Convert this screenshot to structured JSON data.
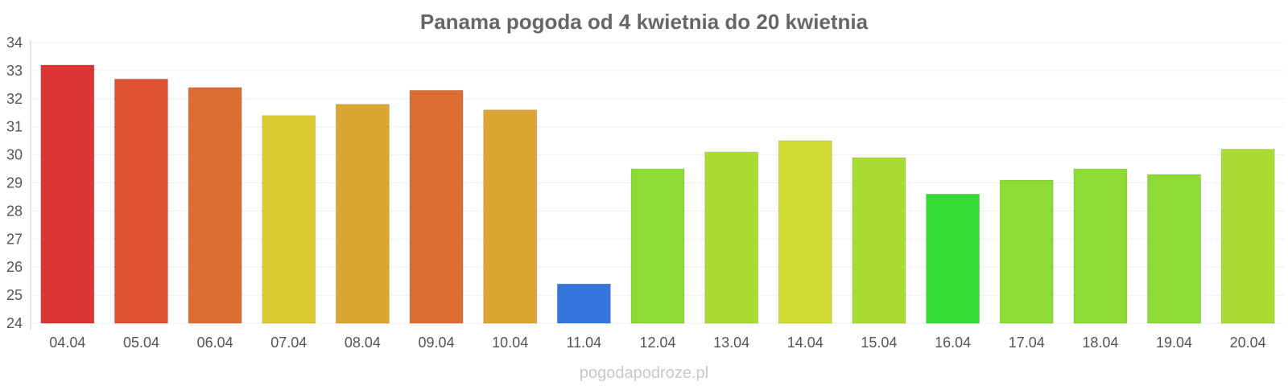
{
  "chart_data": {
    "type": "bar",
    "title": "Panama pogoda od 4 kwietnia do 20 kwietnia",
    "xlabel": "",
    "ylabel": "",
    "ylim": [
      24,
      34
    ],
    "yticks": [
      24,
      25,
      26,
      27,
      28,
      29,
      30,
      31,
      32,
      33,
      34
    ],
    "grid": true,
    "categories": [
      "04.04",
      "05.04",
      "06.04",
      "07.04",
      "08.04",
      "09.04",
      "10.04",
      "11.04",
      "12.04",
      "13.04",
      "14.04",
      "15.04",
      "16.04",
      "17.04",
      "18.04",
      "19.04",
      "20.04"
    ],
    "values": [
      33.2,
      32.7,
      32.4,
      31.4,
      31.8,
      32.3,
      31.6,
      25.4,
      29.5,
      30.1,
      30.5,
      29.9,
      28.6,
      29.1,
      29.5,
      29.3,
      30.2
    ],
    "colors": [
      "#dc3535",
      "#dd5232",
      "#dd6d33",
      "#dcca32",
      "#dca633",
      "#dd6d33",
      "#dca633",
      "#3676dc",
      "#8ddc35",
      "#aadc34",
      "#cedc33",
      "#aadc34",
      "#36dc35",
      "#8ddc35",
      "#8ddc35",
      "#8ddc35",
      "#aadc34"
    ]
  },
  "footer": "pogodapodroze.pl"
}
